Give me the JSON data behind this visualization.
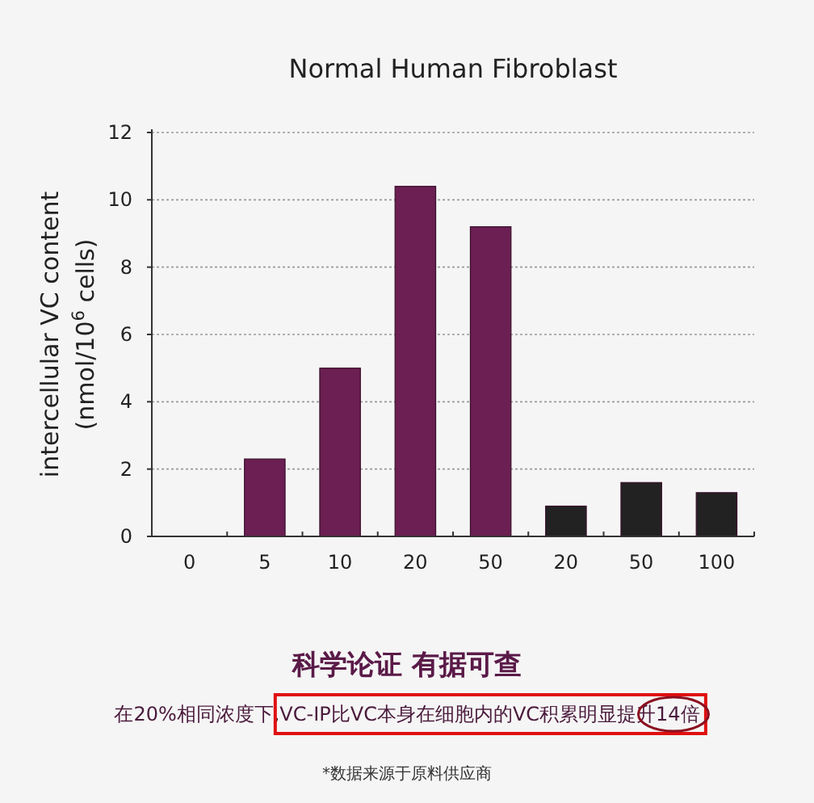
{
  "chart_data": {
    "type": "bar",
    "title": "Normal Human Fibroblast",
    "ylabel": "intercellular  VC content\n(nmol/10$^{6}$ cells)",
    "categories": [
      "0",
      "5",
      "10",
      "20",
      "50",
      "20",
      "50",
      "100"
    ],
    "values": [
      0,
      2.3,
      5.0,
      10.4,
      9.2,
      0.9,
      1.6,
      1.3
    ],
    "colors": [
      "#6b1f52",
      "#6b1f52",
      "#6b1f52",
      "#6b1f52",
      "#6b1f52",
      "#222222",
      "#222222",
      "#222222"
    ],
    "ylim": [
      0,
      12
    ],
    "yticks": [
      0,
      2,
      4,
      6,
      8,
      10,
      12
    ],
    "grid": "y",
    "annotations": [
      "科学论证 有据可查",
      "在20%相同浓度下,VC-IP比VC本身在细胞内的VC积累明显提升14倍",
      "*数据来源于原料供应商"
    ]
  }
}
